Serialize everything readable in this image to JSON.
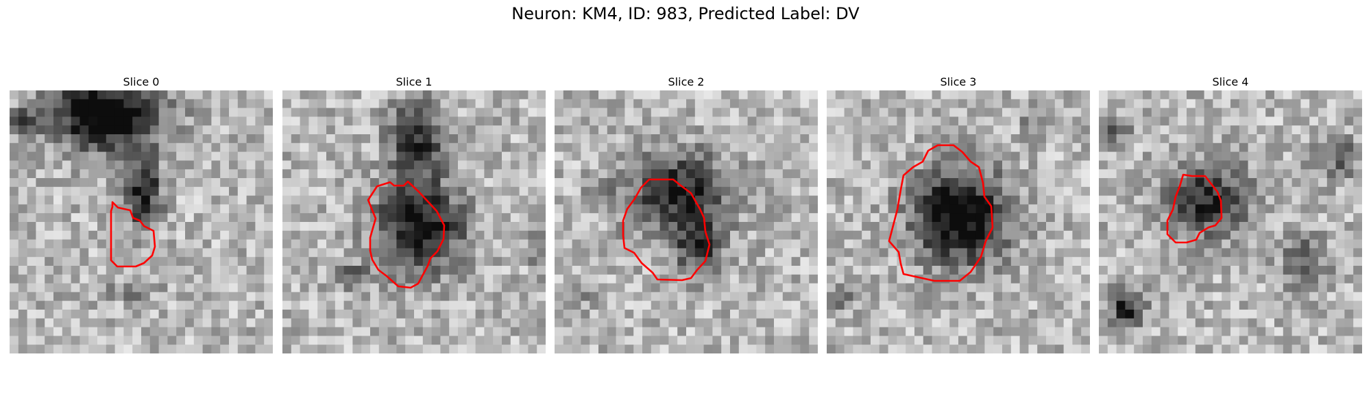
{
  "figure": {
    "title": "Neuron: KM4, ID: 983, Predicted Label: DV"
  },
  "panels": [
    {
      "title": "Slice 0",
      "contour_color": "#ff0000"
    },
    {
      "title": "Slice 1",
      "contour_color": "#ff0000"
    },
    {
      "title": "Slice 2",
      "contour_color": "#ff0000"
    },
    {
      "title": "Slice 3",
      "contour_color": "#ff0000"
    },
    {
      "title": "Slice 4",
      "contour_color": "#ff0000"
    }
  ],
  "colormap": "gray"
}
